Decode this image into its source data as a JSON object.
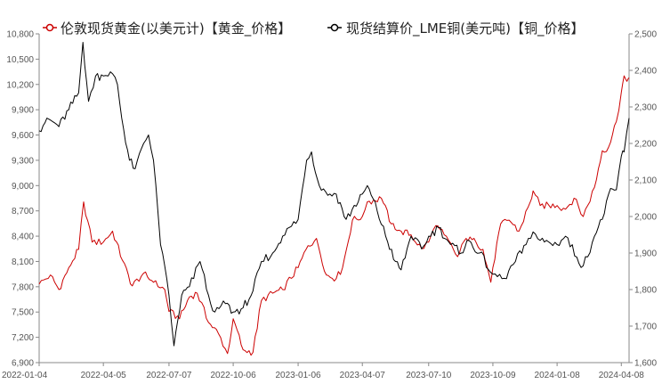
{
  "chart_data": {
    "type": "line",
    "legend_position": "top",
    "grid": false,
    "x_ticks": [
      "2022-01-04",
      "2022-04-05",
      "2022-07-07",
      "2022-10-06",
      "2023-01-06",
      "2023-04-07",
      "2023-07-10",
      "2023-10-09",
      "2024-01-08",
      "2024-04-08"
    ],
    "x_range": [
      "2022-01-04",
      "2024-04-19"
    ],
    "y_left": {
      "min": 6900,
      "max": 10800,
      "ticks": [
        "6,900",
        "7,200",
        "7,500",
        "7,800",
        "8,100",
        "8,400",
        "8,700",
        "9,000",
        "9,300",
        "9,600",
        "9,900",
        "10,200",
        "10,500",
        "10,800"
      ]
    },
    "y_right": {
      "min": 1600,
      "max": 2500,
      "ticks": [
        "1,600",
        "1,700",
        "1,800",
        "1,900",
        "2,000",
        "2,100",
        "2,200",
        "2,300",
        "2,400",
        "2,500"
      ]
    },
    "series": [
      {
        "name": "伦敦现货黄金(以美元计)【黄金_价格】",
        "axis": "right",
        "color": "#cc0000",
        "points": [
          [
            "2022-01-04",
            1815
          ],
          [
            "2022-01-20",
            1840
          ],
          [
            "2022-02-01",
            1800
          ],
          [
            "2022-02-15",
            1860
          ],
          [
            "2022-03-01",
            1910
          ],
          [
            "2022-03-08",
            2040
          ],
          [
            "2022-03-20",
            1930
          ],
          [
            "2022-04-05",
            1930
          ],
          [
            "2022-04-18",
            1960
          ],
          [
            "2022-05-02",
            1880
          ],
          [
            "2022-05-16",
            1810
          ],
          [
            "2022-06-01",
            1845
          ],
          [
            "2022-06-15",
            1820
          ],
          [
            "2022-07-01",
            1800
          ],
          [
            "2022-07-07",
            1740
          ],
          [
            "2022-07-22",
            1720
          ],
          [
            "2022-08-05",
            1780
          ],
          [
            "2022-08-16",
            1790
          ],
          [
            "2022-09-01",
            1710
          ],
          [
            "2022-09-15",
            1680
          ],
          [
            "2022-09-28",
            1625
          ],
          [
            "2022-10-06",
            1720
          ],
          [
            "2022-10-20",
            1635
          ],
          [
            "2022-11-03",
            1628
          ],
          [
            "2022-11-15",
            1770
          ],
          [
            "2022-12-01",
            1790
          ],
          [
            "2022-12-15",
            1800
          ],
          [
            "2023-01-06",
            1860
          ],
          [
            "2023-01-20",
            1920
          ],
          [
            "2023-02-01",
            1940
          ],
          [
            "2023-02-15",
            1840
          ],
          [
            "2023-03-01",
            1830
          ],
          [
            "2023-03-10",
            1860
          ],
          [
            "2023-03-24",
            1990
          ],
          [
            "2023-04-07",
            2000
          ],
          [
            "2023-04-14",
            2040
          ],
          [
            "2023-05-04",
            2050
          ],
          [
            "2023-05-18",
            1980
          ],
          [
            "2023-06-01",
            1960
          ],
          [
            "2023-06-15",
            1950
          ],
          [
            "2023-06-30",
            1912
          ],
          [
            "2023-07-10",
            1930
          ],
          [
            "2023-07-20",
            1975
          ],
          [
            "2023-08-01",
            1950
          ],
          [
            "2023-08-20",
            1890
          ],
          [
            "2023-09-01",
            1940
          ],
          [
            "2023-09-15",
            1930
          ],
          [
            "2023-09-25",
            1910
          ],
          [
            "2023-10-06",
            1820
          ],
          [
            "2023-10-09",
            1860
          ],
          [
            "2023-10-20",
            1980
          ],
          [
            "2023-11-01",
            1990
          ],
          [
            "2023-11-15",
            1960
          ],
          [
            "2023-12-01",
            2040
          ],
          [
            "2023-12-05",
            2070
          ],
          [
            "2023-12-15",
            2030
          ],
          [
            "2024-01-08",
            2030
          ],
          [
            "2024-01-20",
            2020
          ],
          [
            "2024-02-01",
            2050
          ],
          [
            "2024-02-14",
            2000
          ],
          [
            "2024-03-01",
            2080
          ],
          [
            "2024-03-12",
            2180
          ],
          [
            "2024-03-21",
            2190
          ],
          [
            "2024-04-01",
            2260
          ],
          [
            "2024-04-08",
            2340
          ],
          [
            "2024-04-12",
            2385
          ],
          [
            "2024-04-16",
            2370
          ],
          [
            "2024-04-19",
            2380
          ]
        ]
      },
      {
        "name": "现货结算价_LME铜(美元吨)【铜_价格】",
        "axis": "left",
        "color": "#000000",
        "points": [
          [
            "2022-01-04",
            9650
          ],
          [
            "2022-01-15",
            9800
          ],
          [
            "2022-02-01",
            9700
          ],
          [
            "2022-02-15",
            9900
          ],
          [
            "2022-03-01",
            10100
          ],
          [
            "2022-03-07",
            10700
          ],
          [
            "2022-03-15",
            10000
          ],
          [
            "2022-03-25",
            10300
          ],
          [
            "2022-04-05",
            10300
          ],
          [
            "2022-04-15",
            10350
          ],
          [
            "2022-04-25",
            10200
          ],
          [
            "2022-05-01",
            9800
          ],
          [
            "2022-05-12",
            9300
          ],
          [
            "2022-05-20",
            9200
          ],
          [
            "2022-06-01",
            9500
          ],
          [
            "2022-06-08",
            9600
          ],
          [
            "2022-06-15",
            9300
          ],
          [
            "2022-06-25",
            8300
          ],
          [
            "2022-07-07",
            7700
          ],
          [
            "2022-07-14",
            7100
          ],
          [
            "2022-07-25",
            7700
          ],
          [
            "2022-08-05",
            7800
          ],
          [
            "2022-08-20",
            8100
          ],
          [
            "2022-09-01",
            7700
          ],
          [
            "2022-09-10",
            7500
          ],
          [
            "2022-09-25",
            7600
          ],
          [
            "2022-10-06",
            7500
          ],
          [
            "2022-10-20",
            7550
          ],
          [
            "2022-11-03",
            7750
          ],
          [
            "2022-11-15",
            8100
          ],
          [
            "2022-12-01",
            8200
          ],
          [
            "2022-12-15",
            8400
          ],
          [
            "2023-01-06",
            8600
          ],
          [
            "2023-01-18",
            9300
          ],
          [
            "2023-01-25",
            9400
          ],
          [
            "2023-02-05",
            9000
          ],
          [
            "2023-02-20",
            8900
          ],
          [
            "2023-03-01",
            8900
          ],
          [
            "2023-03-15",
            8600
          ],
          [
            "2023-04-07",
            8900
          ],
          [
            "2023-04-14",
            9000
          ],
          [
            "2023-04-28",
            8700
          ],
          [
            "2023-05-10",
            8400
          ],
          [
            "2023-05-24",
            8100
          ],
          [
            "2023-06-01",
            8000
          ],
          [
            "2023-06-15",
            8400
          ],
          [
            "2023-06-30",
            8250
          ],
          [
            "2023-07-10",
            8400
          ],
          [
            "2023-07-24",
            8500
          ],
          [
            "2023-08-10",
            8300
          ],
          [
            "2023-08-25",
            8200
          ],
          [
            "2023-09-05",
            8350
          ],
          [
            "2023-09-20",
            8200
          ],
          [
            "2023-10-09",
            7950
          ],
          [
            "2023-10-25",
            7900
          ],
          [
            "2023-11-10",
            8100
          ],
          [
            "2023-11-25",
            8300
          ],
          [
            "2023-12-05",
            8450
          ],
          [
            "2023-12-15",
            8350
          ],
          [
            "2024-01-08",
            8300
          ],
          [
            "2024-01-20",
            8400
          ],
          [
            "2024-02-05",
            8150
          ],
          [
            "2024-02-14",
            8050
          ],
          [
            "2024-03-01",
            8400
          ],
          [
            "2024-03-12",
            8600
          ],
          [
            "2024-03-21",
            8900
          ],
          [
            "2024-04-01",
            8950
          ],
          [
            "2024-04-08",
            9350
          ],
          [
            "2024-04-12",
            9400
          ],
          [
            "2024-04-19",
            9800
          ]
        ]
      }
    ]
  }
}
